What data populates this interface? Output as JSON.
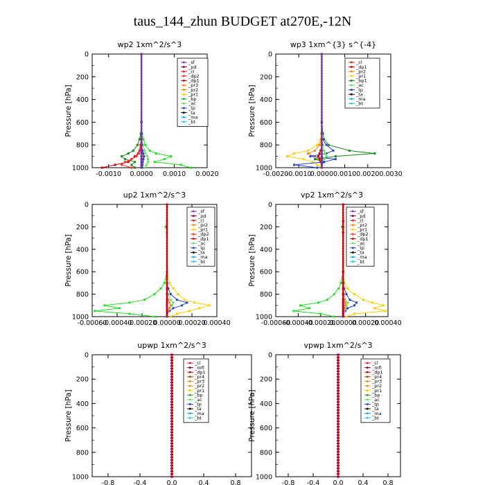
{
  "title": "taus_144_zhun  BUDGET at270E,-12N",
  "chart_data": [
    {
      "type": "line",
      "title": "wp2   1xm^2/s^3",
      "ylabel": "Pressure  [hPa]",
      "xlim": [
        -0.0015,
        0.002
      ],
      "ylim": [
        1000,
        0
      ],
      "xticks": [
        -0.001,
        0,
        0.001,
        0.002
      ],
      "xtick_labels": [
        "-0.0010",
        "0.0000",
        "0.0010",
        "0.0020"
      ],
      "yticks": [
        0,
        200,
        400,
        600,
        800,
        1000
      ],
      "y": [
        0,
        600,
        700,
        750,
        800,
        850,
        875,
        900,
        925,
        950,
        975,
        1000
      ],
      "legend": [
        "_sf",
        "_pd",
        "_cl",
        "_dp2",
        "_dp1",
        "_pr3",
        "_pr2",
        "_pr1",
        "_bp",
        "_ac",
        "_tp",
        "_ta",
        "_ma",
        "_bt"
      ],
      "series": [
        {
          "name": "_pr1",
          "color": "#22dd22",
          "values": [
            0,
            0,
            2e-05,
            6e-05,
            0.00012,
            0.00025,
            0.00045,
            0.0009,
            0.0007,
            0.0004,
            0.0012,
            0.0015
          ]
        },
        {
          "name": "_bp",
          "color": "#118811",
          "values": [
            0,
            0,
            -2e-05,
            -6e-05,
            -0.00012,
            -0.00025,
            -0.0004,
            -0.0006,
            -0.0005,
            -0.0002,
            -0.0003,
            -0.0002
          ]
        },
        {
          "name": "_dp1",
          "color": "#cc0000",
          "values": [
            0,
            0,
            0,
            -1e-05,
            -3e-05,
            -6e-05,
            -0.0001,
            -0.0002,
            -0.0003,
            -0.0004,
            -0.0008,
            -0.0012
          ]
        },
        {
          "name": "_dp2",
          "color": "#ff3333",
          "values": [
            0,
            0,
            0,
            0,
            -2e-05,
            -4e-05,
            -8e-05,
            -0.00015,
            -0.0003,
            -0.0005,
            -0.0006,
            -0.0003
          ]
        },
        {
          "name": "_pr3",
          "color": "#ff8800",
          "values": [
            0,
            0,
            0,
            0,
            1e-05,
            2e-05,
            4e-05,
            6e-05,
            6e-05,
            4e-05,
            3e-05,
            2e-05
          ]
        },
        {
          "name": "_ac",
          "color": "#66dd66",
          "values": [
            0,
            0,
            0,
            2e-05,
            5e-05,
            0.0001,
            0.00012,
            0.00018,
            0.0002,
            0.0002,
            0.00015,
            0.0001
          ]
        },
        {
          "name": "_tp",
          "color": "#2244cc",
          "values": [
            0,
            0,
            0,
            0,
            1e-05,
            3e-05,
            5e-05,
            8e-05,
            6e-05,
            4e-05,
            3e-05,
            2e-05
          ]
        },
        {
          "name": "_sf",
          "color": "#7733aa",
          "values": [
            0,
            0,
            0,
            0,
            0,
            0,
            0,
            0,
            0,
            0,
            0,
            0
          ]
        },
        {
          "name": "_bt",
          "color": "#22ccee",
          "values": [
            0,
            0,
            0,
            0,
            0,
            0,
            0,
            0,
            0,
            0,
            0,
            0
          ]
        },
        {
          "name": "_pd",
          "color": "#880044",
          "values": [
            0,
            0,
            0,
            0,
            0,
            0,
            0,
            0,
            0,
            0,
            0,
            0
          ]
        }
      ]
    },
    {
      "type": "line",
      "title": "wp3   1xm^{3} s^{-4}",
      "ylabel": "Pressure  [hPa]",
      "xlim": [
        -0.002,
        0.003
      ],
      "ylim": [
        1000,
        0
      ],
      "xticks": [
        -0.002,
        -0.001,
        0,
        0.001,
        0.002,
        0.003
      ],
      "xtick_labels": [
        "-0.0020",
        "-0.0010",
        "0.0000",
        "0.0010",
        "0.0020",
        "0.0030"
      ],
      "yticks": [
        0,
        200,
        400,
        600,
        800,
        1000
      ],
      "y": [
        0,
        600,
        700,
        750,
        800,
        850,
        875,
        900,
        925,
        950,
        975,
        1000
      ],
      "legend": [
        "_cl",
        "_dp1",
        "_pr2",
        "_pr1",
        "_bp1",
        "_ac",
        "_tp",
        "_ta",
        "_ma",
        "_bt"
      ],
      "series": [
        {
          "name": "_bp1",
          "color": "#118811",
          "values": [
            0,
            0,
            5e-05,
            0.0001,
            0.0003,
            0.0012,
            0.0023,
            0.0006,
            -0.0003,
            0.0001,
            0,
            0
          ]
        },
        {
          "name": "_pr1",
          "color": "#ffcc00",
          "values": [
            0,
            0,
            -2e-05,
            -5e-05,
            -0.0002,
            -0.0006,
            -0.0012,
            -0.0015,
            -0.0008,
            -0.0004,
            -0.0002,
            0
          ]
        },
        {
          "name": "_pr2",
          "color": "#ff8800",
          "values": [
            0,
            0,
            0,
            -2e-05,
            -0.0001,
            -0.0003,
            -0.0006,
            -0.0003,
            -0.0001,
            0,
            0,
            0
          ]
        },
        {
          "name": "_tp",
          "color": "#2244cc",
          "values": [
            0,
            0,
            1e-05,
            3e-05,
            0.0002,
            0.0005,
            0.0002,
            -0.0005,
            0.0006,
            0.0001,
            -0.0012,
            -0.0002
          ]
        },
        {
          "name": "_ac",
          "color": "#66dd66",
          "values": [
            0,
            0,
            0,
            0,
            5e-05,
            0.0001,
            0.00015,
            0.0002,
            0.0001,
            0,
            0,
            0
          ]
        },
        {
          "name": "_dp1",
          "color": "#cc0000",
          "values": [
            0,
            0,
            0,
            0,
            0,
            -5e-05,
            -0.0001,
            -0.00015,
            -0.0001,
            -5e-05,
            0,
            0
          ]
        },
        {
          "name": "_cl",
          "color": "#7733aa",
          "values": [
            0,
            0,
            0,
            0,
            0,
            0,
            0,
            0,
            0,
            0,
            0,
            0
          ]
        }
      ]
    },
    {
      "type": "line",
      "title": "up2   1xm^2/s^3",
      "ylabel": "Pressure  [hPa]",
      "xlim": [
        -0.0006,
        0.0004
      ],
      "ylim": [
        1000,
        0
      ],
      "xticks": [
        -0.0006,
        -0.0004,
        -0.0002,
        0,
        0.0002,
        0.0004
      ],
      "xtick_labels": [
        "-0.00060",
        "-0.00040",
        "-0.00020",
        "0.00000",
        "0.00020",
        "0.00040"
      ],
      "yticks": [
        0,
        200,
        400,
        600,
        800,
        1000
      ],
      "y": [
        0,
        150,
        200,
        250,
        600,
        700,
        750,
        800,
        850,
        875,
        900,
        925,
        950,
        975,
        1000
      ],
      "legend": [
        "_sf",
        "_pd",
        "_cl",
        "_pr2",
        "_pr1",
        "_dp2",
        "_dp1",
        "_ac",
        "_tp",
        "_ta",
        "_ma",
        "_bt"
      ],
      "series": [
        {
          "name": "_dp2",
          "color": "#22dd22",
          "values": [
            0,
            0,
            -1e-05,
            0,
            0,
            -2e-05,
            -5e-05,
            -0.0001,
            -0.00018,
            -0.0003,
            -0.0005,
            -0.00038,
            -0.00058,
            -0.0003,
            -0.0001
          ]
        },
        {
          "name": "_pr1",
          "color": "#ffcc00",
          "values": [
            0,
            0,
            0,
            0,
            0,
            2e-05,
            5e-05,
            9e-05,
            0.00014,
            0.00022,
            0.00034,
            0.00026,
            0.00018,
            8e-05,
            3e-05
          ]
        },
        {
          "name": "_tp",
          "color": "#2244cc",
          "values": [
            0,
            0,
            0,
            0,
            0,
            0,
            1e-05,
            3e-05,
            8e-05,
            0.00016,
            0.00012,
            5e-05,
            2e-05,
            0,
            0
          ]
        },
        {
          "name": "_ac",
          "color": "#66dd66",
          "values": [
            0,
            0,
            0,
            0,
            0,
            0,
            0,
            1e-05,
            3e-05,
            5e-05,
            4e-05,
            2e-05,
            1e-05,
            0,
            0
          ]
        },
        {
          "name": "_pr2",
          "color": "#ff8800",
          "values": [
            0,
            0,
            0,
            0,
            0,
            0,
            0,
            0,
            1e-05,
            2e-05,
            3e-05,
            2e-05,
            1e-05,
            0,
            0
          ]
        },
        {
          "name": "_cl",
          "color": "#dd2222",
          "values": [
            0,
            0,
            0,
            0,
            0,
            0,
            0,
            0,
            0,
            0,
            0,
            0,
            0,
            0,
            0
          ]
        },
        {
          "name": "_sf",
          "color": "#7733aa",
          "values": [
            0,
            0,
            0,
            0,
            0,
            0,
            0,
            0,
            0,
            0,
            0,
            0,
            0,
            0,
            0
          ]
        }
      ]
    },
    {
      "type": "line",
      "title": "vp2   1xm^2/s^3",
      "ylabel": "Pressure  [hPa]",
      "xlim": [
        -0.0006,
        0.0004
      ],
      "ylim": [
        1000,
        0
      ],
      "xticks": [
        -0.0006,
        -0.0004,
        -0.0002,
        0,
        0.0002,
        0.0004
      ],
      "xtick_labels": [
        "-0.00060",
        "-0.00040",
        "-0.00020",
        "0.00000",
        "0.00020",
        "0.00040"
      ],
      "yticks": [
        0,
        200,
        400,
        600,
        800,
        1000
      ],
      "y": [
        0,
        150,
        200,
        250,
        600,
        700,
        750,
        800,
        850,
        875,
        900,
        925,
        950,
        975,
        1000
      ],
      "legend": [
        "_sf",
        "_pd",
        "_cl",
        "_pr2",
        "_pr1",
        "_dp2",
        "_dp1",
        "_ac",
        "_tp",
        "_ta",
        "_ma",
        "_bt"
      ],
      "series": [
        {
          "name": "_dp2",
          "color": "#22dd22",
          "values": [
            0,
            0,
            -1e-05,
            0,
            0,
            -2e-05,
            -4e-05,
            -8e-05,
            -0.00014,
            -0.00022,
            -0.00038,
            -0.0003,
            -0.00044,
            -0.0002,
            -8e-05
          ]
        },
        {
          "name": "_pr1",
          "color": "#ffcc00",
          "values": [
            0,
            0,
            0,
            0,
            0,
            1e-05,
            4e-05,
            0.0001,
            0.00018,
            0.00026,
            0.00036,
            0.00028,
            0.00038,
            0.0001,
            3e-05
          ]
        },
        {
          "name": "_tp",
          "color": "#2244cc",
          "values": [
            0,
            0,
            0,
            0,
            0,
            0,
            1e-05,
            3e-05,
            6e-05,
            0.00012,
            0.0001,
            4e-05,
            2e-05,
            0,
            0
          ]
        },
        {
          "name": "_ac",
          "color": "#66dd66",
          "values": [
            0,
            0,
            0,
            0,
            0,
            0,
            0,
            1e-05,
            2e-05,
            4e-05,
            3e-05,
            2e-05,
            1e-05,
            0,
            0
          ]
        },
        {
          "name": "_pr2",
          "color": "#ff8800",
          "values": [
            0,
            0,
            0,
            0,
            0,
            0,
            0,
            0,
            1e-05,
            2e-05,
            2e-05,
            1e-05,
            0,
            0,
            0
          ]
        },
        {
          "name": "_cl",
          "color": "#dd2222",
          "values": [
            0,
            0,
            0,
            0,
            0,
            0,
            0,
            0,
            0,
            0,
            0,
            0,
            0,
            0,
            0
          ]
        },
        {
          "name": "_sf",
          "color": "#7733aa",
          "values": [
            0,
            0,
            0,
            0,
            0,
            0,
            0,
            0,
            0,
            0,
            0,
            0,
            0,
            0,
            0
          ]
        }
      ]
    },
    {
      "type": "line",
      "title": "upwp   1xm^2/s^3",
      "ylabel": "Pressure  [hPa]",
      "xlim": [
        -1,
        1
      ],
      "ylim": [
        1000,
        0
      ],
      "xticks": [
        -0.8,
        -0.4,
        0,
        0.4,
        0.8
      ],
      "xtick_labels": [
        "-0.8",
        "-0.4",
        "0.0",
        "0.4",
        "0.8"
      ],
      "yticks": [
        0,
        200,
        400,
        600,
        800,
        1000
      ],
      "y": [
        0,
        1000
      ],
      "legend": [
        "_cl",
        "_mfl",
        "_dp1",
        "_pr4",
        "_pr3",
        "_pr2",
        "_pr1",
        "_bp",
        "_ac",
        "_tp",
        "_ta",
        "_ma",
        "_bt"
      ],
      "series": [
        {
          "name": "_cl",
          "color": "#7733aa",
          "values": [
            0,
            0
          ]
        },
        {
          "name": "_mfl",
          "color": "#880044",
          "values": [
            0,
            0
          ]
        },
        {
          "name": "_dp1",
          "color": "#cc0000",
          "values": [
            0,
            0
          ]
        }
      ]
    },
    {
      "type": "line",
      "title": "vpwp   1xm^2/s^3",
      "ylabel": "Pressure  [hPa]",
      "xlim": [
        -1,
        1
      ],
      "ylim": [
        1000,
        0
      ],
      "xticks": [
        -0.8,
        -0.4,
        0,
        0.4,
        0.8
      ],
      "xtick_labels": [
        "-0.8",
        "-0.4",
        "0.0",
        "0.4",
        "0.8"
      ],
      "yticks": [
        0,
        200,
        400,
        600,
        800,
        1000
      ],
      "y": [
        0,
        1000
      ],
      "legend": [
        "_cl",
        "_mfl",
        "_dp1",
        "_pr4",
        "_pr3",
        "_pr2",
        "_pr1",
        "_bp",
        "_ac",
        "_tp",
        "_ta",
        "_ma",
        "_bt"
      ],
      "series": [
        {
          "name": "_cl",
          "color": "#7733aa",
          "values": [
            0,
            0
          ]
        },
        {
          "name": "_mfl",
          "color": "#880044",
          "values": [
            0,
            0
          ]
        },
        {
          "name": "_dp1",
          "color": "#cc0000",
          "values": [
            0,
            0
          ]
        }
      ]
    }
  ],
  "legend_colors": {
    "_sf": "#7733aa",
    "_pd": "#880044",
    "_cl": "#dd2222",
    "_mfl": "#880044",
    "_dp2": "#ff3333",
    "_dp1": "#cc0000",
    "_pr4": "#aa4400",
    "_pr3": "#ff8800",
    "_pr2": "#ff8800",
    "_pr1": "#ffcc00",
    "_bp": "#22aa22",
    "_bp1": "#118811",
    "_ac": "#66dd66",
    "_tp": "#2244cc",
    "_ta": "#000000",
    "_ma": "#22aadd",
    "_bt": "#22ccee"
  }
}
